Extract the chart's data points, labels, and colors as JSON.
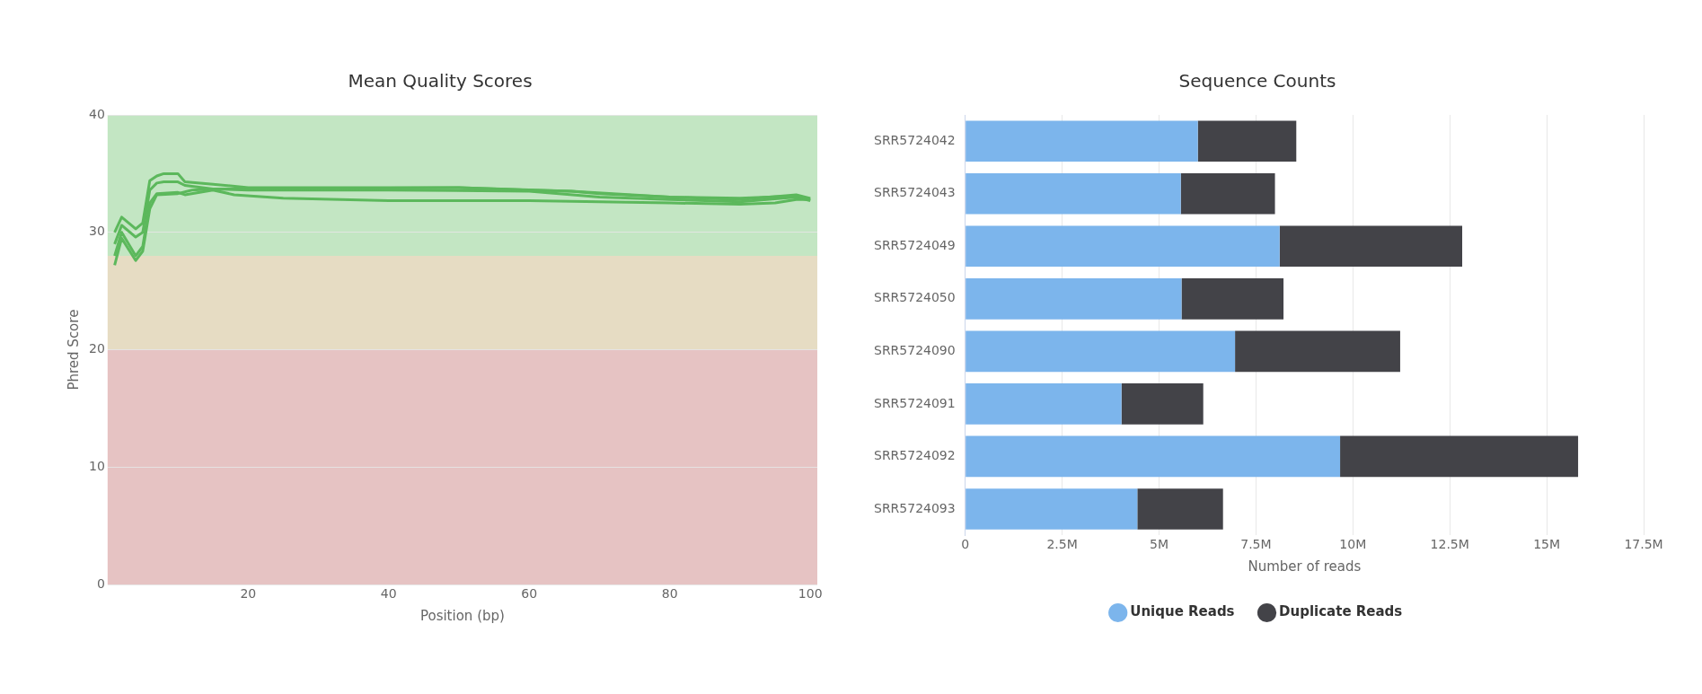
{
  "chart_data": [
    {
      "type": "line",
      "title": "Mean Quality Scores",
      "xlabel": "Position (bp)",
      "ylabel": "Phred Score",
      "xlim": [
        0,
        101
      ],
      "xticks": [
        20,
        40,
        60,
        80,
        100
      ],
      "ylim": [
        0,
        40
      ],
      "yticks": [
        0,
        10,
        20,
        30,
        40
      ],
      "grid": "y",
      "legend": false,
      "marker": "none",
      "bands": [
        {
          "axis": "y",
          "from": 28,
          "to": 40,
          "color": "#c3e6c3"
        },
        {
          "axis": "y",
          "from": 20,
          "to": 28,
          "color": "#e6dcc3"
        },
        {
          "axis": "y",
          "from": 0,
          "to": 20,
          "color": "#e6c3c3"
        }
      ],
      "series": [
        {
          "color": "#5cb85c",
          "x": [
            1,
            2,
            3,
            4,
            5,
            6,
            7,
            8,
            9,
            10,
            11,
            15,
            20,
            30,
            50,
            60,
            66,
            70,
            80,
            90,
            98,
            100
          ],
          "values": [
            30,
            31.3,
            30.8,
            30.3,
            30.8,
            34.4,
            34.8,
            35,
            35,
            35,
            34.3,
            34.1,
            33.8,
            33.8,
            33.8,
            33.6,
            33.5,
            33.3,
            33,
            32.9,
            33.1,
            32.8
          ]
        },
        {
          "color": "#5cb85c",
          "x": [
            1,
            2,
            4,
            5,
            6,
            7,
            8,
            10,
            11,
            15,
            20,
            50,
            66,
            80,
            90,
            98,
            100
          ],
          "values": [
            29,
            30.6,
            29.6,
            30,
            33.6,
            34.2,
            34.3,
            34.3,
            34,
            33.7,
            33.7,
            33.8,
            33.5,
            33,
            32.8,
            33.2,
            32.9
          ]
        },
        {
          "color": "#5cb85c",
          "x": [
            1,
            2,
            4,
            5,
            6,
            7,
            10,
            11,
            15,
            18,
            25,
            40,
            60,
            80,
            90,
            95,
            98,
            100
          ],
          "values": [
            28,
            30,
            28,
            28.8,
            32.5,
            33.3,
            33.4,
            33.2,
            33.6,
            33.2,
            32.9,
            32.7,
            32.7,
            32.5,
            32.4,
            32.5,
            32.8,
            32.8
          ]
        },
        {
          "color": "#5cb85c",
          "x": [
            1,
            2,
            4,
            5,
            6,
            7,
            10,
            12,
            15,
            20,
            40,
            60,
            70,
            80,
            90,
            98,
            100
          ],
          "values": [
            27.2,
            29.5,
            27.6,
            28.4,
            32,
            33.2,
            33.3,
            33.6,
            33.7,
            33.6,
            33.6,
            33.5,
            33,
            32.8,
            32.6,
            33,
            32.7
          ]
        }
      ]
    },
    {
      "type": "bar",
      "orientation": "horizontal",
      "stacked": true,
      "title": "Sequence Counts",
      "xlabel": "Number of reads",
      "grid": "x",
      "legend": "bottom",
      "categories": [
        "SRR5724042",
        "SRR5724043",
        "SRR5724049",
        "SRR5724050",
        "SRR5724090",
        "SRR5724091",
        "SRR5724092",
        "SRR5724093"
      ],
      "xlim": [
        0,
        17500000
      ],
      "xticks": [
        0,
        {
          "value": 2500000,
          "label": "2.5M"
        },
        {
          "value": 5000000,
          "label": "5M"
        },
        {
          "value": 7500000,
          "label": "7.5M"
        },
        {
          "value": 10000000,
          "label": "10M"
        },
        {
          "value": 12500000,
          "label": "12.5M"
        },
        {
          "value": 15000000,
          "label": "15M"
        },
        {
          "value": 17500000,
          "label": "17.5M"
        }
      ],
      "series": [
        {
          "name": "Unique Reads",
          "color": "#7cb5ec",
          "values": [
            6000000,
            5560000,
            8110000,
            5580000,
            6960000,
            4030000,
            9670000,
            4440000
          ]
        },
        {
          "name": "Duplicate Reads",
          "color": "#434348",
          "values": [
            2540000,
            2430000,
            4710000,
            2630000,
            4260000,
            2110000,
            6140000,
            2210000
          ]
        }
      ]
    }
  ]
}
